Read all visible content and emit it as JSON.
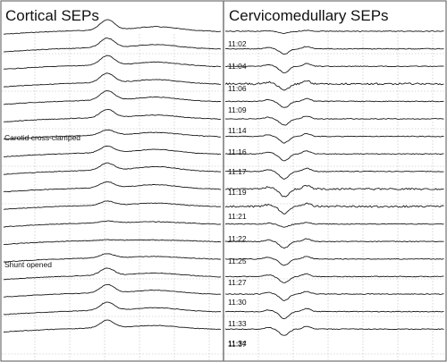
{
  "chart_data": {
    "type": "line",
    "panels": [
      {
        "title": "Cortical SEPs",
        "trace_count": 18,
        "annotations": [
          {
            "text": "Carotid cross-clamped",
            "after_trace": 6
          },
          {
            "text": "Shunt opened",
            "after_trace": 13
          }
        ]
      },
      {
        "title": "Cervicomedullary SEPs",
        "trace_count": 18,
        "time_labels": [
          "11:02",
          "11:04",
          "11:06",
          "11:09",
          "11:14",
          "11:16",
          "11:17",
          "11:19",
          "11:21",
          "11:22",
          "11:25",
          "11:27",
          "11:30",
          "11:33",
          "11:34",
          "11:37"
        ]
      }
    ],
    "cortical_peak_amplitude": [
      0.9,
      0.8,
      0.8,
      0.8,
      0.8,
      0.7,
      0.45,
      0.55,
      0.6,
      0.5,
      0.35,
      0.15,
      0.05,
      0.35,
      0.6,
      0.7,
      0.7,
      0.65
    ],
    "cervicomedullary_peak_amplitude": [
      0.2,
      0.5,
      0.6,
      0.6,
      0.6,
      0.6,
      0.6,
      0.65,
      0.7,
      0.7,
      0.65,
      0.3,
      0.6,
      0.6,
      0.6,
      0.6,
      0.65,
      0.6
    ],
    "grid": true
  }
}
